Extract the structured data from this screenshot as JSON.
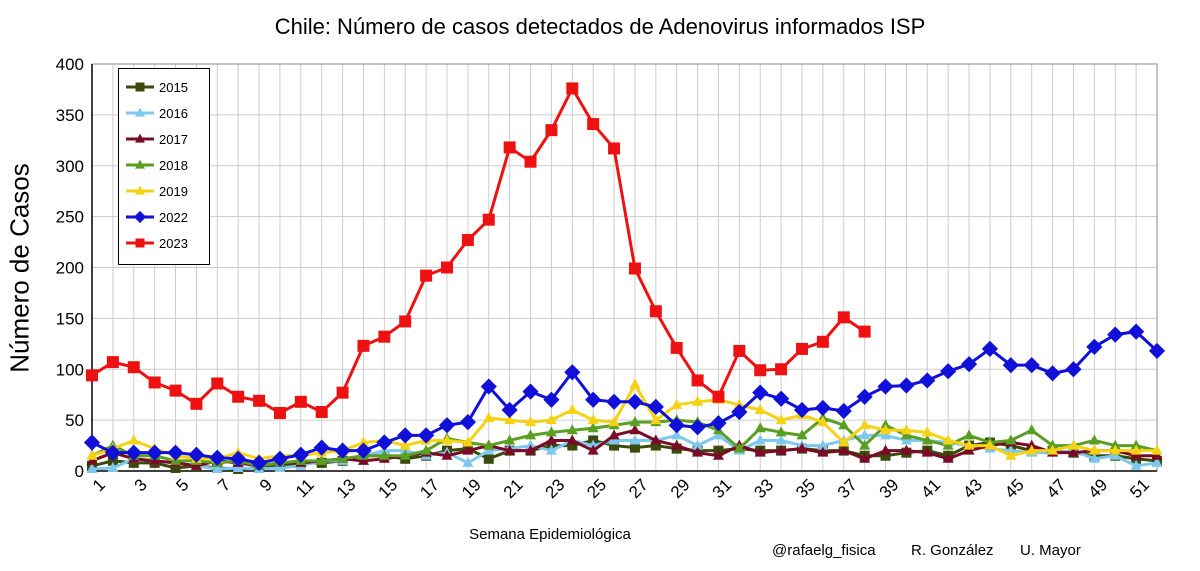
{
  "title": "Chile: Número de casos detectados de Adenovirus informados ISP",
  "credits": {
    "handle": "@rafaelg_fisica",
    "author": "R. González",
    "institution": "U. Mayor"
  },
  "chart_data": {
    "type": "line",
    "title": "Chile: Número de casos detectados de Adenovirus informados ISP",
    "xlabel": "Semana Epidemiológica",
    "ylabel": "Número de Casos",
    "xlim": [
      1,
      52
    ],
    "ylim": [
      0,
      400
    ],
    "yticks": [
      0,
      50,
      100,
      150,
      200,
      250,
      300,
      350,
      400
    ],
    "xticks": [
      1,
      3,
      5,
      7,
      9,
      11,
      13,
      15,
      17,
      19,
      21,
      23,
      25,
      27,
      29,
      31,
      33,
      35,
      37,
      39,
      41,
      43,
      45,
      47,
      49,
      51
    ],
    "grid": true,
    "legend_position": "top-left",
    "series": [
      {
        "name": "2015",
        "color": "#3a4a0a",
        "marker": "square",
        "values": [
          5,
          10,
          8,
          8,
          3,
          5,
          3,
          2,
          3,
          5,
          8,
          8,
          10,
          15,
          15,
          12,
          15,
          20,
          22,
          12,
          20,
          20,
          25,
          25,
          30,
          25,
          23,
          25,
          22,
          20,
          20,
          22,
          20,
          20,
          22,
          20,
          20,
          15,
          15,
          18,
          20,
          15,
          25,
          28,
          25,
          20,
          20,
          18,
          15,
          15,
          12,
          10
        ]
      },
      {
        "name": "2016",
        "color": "#7ec8f0",
        "marker": "triangle",
        "values": [
          2,
          3,
          12,
          10,
          8,
          5,
          2,
          3,
          2,
          3,
          5,
          10,
          10,
          15,
          20,
          20,
          15,
          18,
          8,
          20,
          22,
          25,
          20,
          30,
          25,
          30,
          30,
          30,
          35,
          25,
          35,
          20,
          30,
          30,
          25,
          25,
          30,
          35,
          35,
          30,
          30,
          28,
          25,
          22,
          20,
          18,
          18,
          20,
          12,
          15,
          5,
          8
        ]
      },
      {
        "name": "2017",
        "color": "#7a0a26",
        "marker": "triangle",
        "values": [
          10,
          18,
          12,
          10,
          8,
          5,
          10,
          8,
          5,
          8,
          8,
          10,
          12,
          10,
          12,
          15,
          18,
          15,
          20,
          25,
          20,
          20,
          30,
          30,
          20,
          35,
          40,
          30,
          25,
          18,
          15,
          25,
          18,
          20,
          22,
          18,
          20,
          12,
          20,
          20,
          18,
          12,
          20,
          25,
          28,
          25,
          18,
          18,
          20,
          20,
          15,
          15
        ]
      },
      {
        "name": "2018",
        "color": "#5a9e22",
        "marker": "triangle",
        "values": [
          15,
          25,
          15,
          15,
          10,
          10,
          8,
          10,
          5,
          8,
          10,
          10,
          12,
          15,
          15,
          15,
          20,
          32,
          28,
          25,
          30,
          35,
          38,
          40,
          42,
          45,
          48,
          48,
          50,
          48,
          40,
          22,
          42,
          38,
          35,
          52,
          45,
          25,
          45,
          35,
          30,
          25,
          35,
          28,
          30,
          40,
          25,
          25,
          30,
          25,
          25,
          20
        ]
      },
      {
        "name": "2019",
        "color": "#f5d214",
        "marker": "triangle",
        "values": [
          15,
          22,
          30,
          22,
          15,
          12,
          12,
          18,
          12,
          15,
          15,
          18,
          20,
          28,
          30,
          25,
          30,
          30,
          28,
          52,
          50,
          48,
          50,
          60,
          50,
          48,
          85,
          50,
          65,
          68,
          70,
          65,
          60,
          50,
          55,
          48,
          28,
          45,
          40,
          40,
          38,
          30,
          25,
          25,
          15,
          20,
          20,
          25,
          20,
          20,
          20,
          20
        ]
      },
      {
        "name": "2022",
        "color": "#1010d8",
        "marker": "diamond",
        "values": [
          28,
          18,
          18,
          18,
          18,
          16,
          13,
          12,
          8,
          12,
          16,
          23,
          20,
          20,
          28,
          35,
          35,
          45,
          48,
          83,
          60,
          78,
          70,
          97,
          70,
          68,
          68,
          63,
          45,
          43,
          47,
          58,
          77,
          71,
          60,
          62,
          59,
          73,
          83,
          84,
          89,
          98,
          105,
          120,
          104,
          104,
          96,
          100,
          122,
          134,
          137,
          118
        ]
      },
      {
        "name": "2023",
        "color": "#ee1111",
        "marker": "square",
        "values": [
          94,
          107,
          102,
          87,
          79,
          66,
          86,
          73,
          69,
          57,
          68,
          58,
          77,
          123,
          132,
          147,
          192,
          200,
          227,
          247,
          318,
          304,
          335,
          376,
          341,
          317,
          199,
          157,
          121,
          89,
          73,
          118,
          99,
          100,
          120,
          127,
          151,
          137
        ]
      }
    ]
  }
}
